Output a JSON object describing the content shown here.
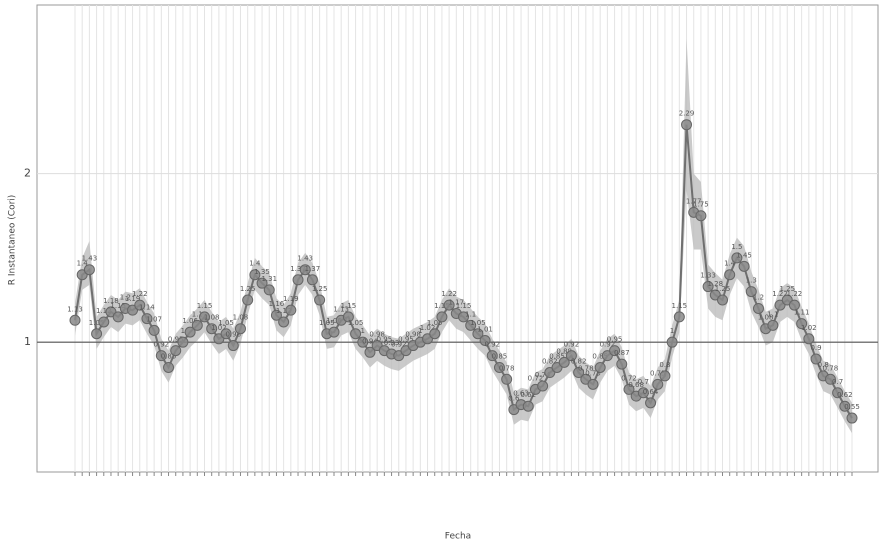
{
  "chart_data": {
    "type": "line",
    "y_label": "R Instantaneo (Cori)",
    "x_label": "Fecha",
    "values": [
      1.13,
      1.4,
      1.43,
      1.05,
      1.12,
      1.18,
      1.15,
      1.2,
      1.19,
      1.22,
      1.14,
      1.07,
      0.92,
      0.85,
      0.95,
      1.0,
      1.06,
      1.1,
      1.15,
      1.08,
      1.02,
      1.05,
      0.98,
      1.08,
      1.25,
      1.4,
      1.35,
      1.31,
      1.16,
      1.12,
      1.19,
      1.37,
      1.43,
      1.37,
      1.25,
      1.05,
      1.06,
      1.13,
      1.15,
      1.05,
      1.0,
      0.94,
      0.98,
      0.95,
      0.93,
      0.92,
      0.95,
      0.98,
      1.0,
      1.02,
      1.05,
      1.15,
      1.22,
      1.17,
      1.15,
      1.1,
      1.05,
      1.01,
      0.92,
      0.85,
      0.78,
      0.6,
      0.63,
      0.62,
      0.72,
      0.74,
      0.82,
      0.85,
      0.88,
      0.92,
      0.82,
      0.78,
      0.75,
      0.85,
      0.92,
      0.95,
      0.87,
      0.72,
      0.68,
      0.7,
      0.64,
      0.75,
      0.8,
      1.0,
      1.15,
      2.29,
      1.77,
      1.75,
      1.33,
      1.28,
      1.25,
      1.4,
      1.5,
      1.45,
      1.3,
      1.2,
      1.08,
      1.1,
      1.22,
      1.25,
      1.22,
      1.11,
      1.02,
      0.9,
      0.8,
      0.78,
      0.7,
      0.62,
      0.55
    ],
    "lower": [
      1.04,
      1.31,
      1.34,
      0.96,
      1.03,
      1.09,
      1.06,
      1.11,
      1.1,
      1.13,
      1.05,
      0.98,
      0.83,
      0.76,
      0.86,
      0.91,
      0.97,
      1.01,
      1.06,
      0.99,
      0.93,
      0.96,
      0.89,
      0.99,
      1.16,
      1.31,
      1.26,
      1.22,
      1.07,
      1.03,
      1.1,
      1.28,
      1.34,
      1.28,
      1.16,
      0.96,
      0.97,
      1.04,
      1.06,
      0.96,
      0.91,
      0.85,
      0.89,
      0.86,
      0.84,
      0.83,
      0.86,
      0.89,
      0.91,
      0.93,
      0.96,
      1.06,
      1.13,
      1.08,
      1.06,
      1.01,
      0.96,
      0.92,
      0.83,
      0.76,
      0.69,
      0.51,
      0.54,
      0.53,
      0.63,
      0.65,
      0.73,
      0.76,
      0.79,
      0.83,
      0.73,
      0.69,
      0.66,
      0.76,
      0.83,
      0.86,
      0.78,
      0.63,
      0.59,
      0.61,
      0.55,
      0.66,
      0.71,
      0.91,
      1.06,
      1.9,
      1.55,
      1.55,
      1.2,
      1.15,
      1.13,
      1.28,
      1.38,
      1.33,
      1.18,
      1.09,
      0.98,
      1.0,
      1.12,
      1.15,
      1.12,
      1.01,
      0.93,
      0.81,
      0.71,
      0.69,
      0.61,
      0.53,
      0.46
    ],
    "upper": [
      1.23,
      1.5,
      1.6,
      1.15,
      1.22,
      1.28,
      1.25,
      1.3,
      1.29,
      1.32,
      1.24,
      1.17,
      1.02,
      0.95,
      1.05,
      1.1,
      1.16,
      1.2,
      1.25,
      1.18,
      1.12,
      1.15,
      1.08,
      1.18,
      1.35,
      1.5,
      1.45,
      1.41,
      1.26,
      1.22,
      1.29,
      1.47,
      1.53,
      1.47,
      1.35,
      1.15,
      1.16,
      1.23,
      1.25,
      1.15,
      1.1,
      1.04,
      1.08,
      1.05,
      1.03,
      1.02,
      1.05,
      1.08,
      1.1,
      1.12,
      1.15,
      1.25,
      1.32,
      1.27,
      1.25,
      1.2,
      1.15,
      1.11,
      1.02,
      0.95,
      0.88,
      0.7,
      0.73,
      0.72,
      0.82,
      0.84,
      0.92,
      0.95,
      0.98,
      1.02,
      0.92,
      0.88,
      0.85,
      0.95,
      1.02,
      1.05,
      0.97,
      0.82,
      0.78,
      0.8,
      0.74,
      0.85,
      0.9,
      1.1,
      1.25,
      2.8,
      2.0,
      1.95,
      1.46,
      1.41,
      1.37,
      1.52,
      1.62,
      1.57,
      1.42,
      1.31,
      1.18,
      1.2,
      1.32,
      1.35,
      1.32,
      1.21,
      1.11,
      0.99,
      0.89,
      0.87,
      0.79,
      0.71,
      0.64
    ],
    "color": "#6f6f6f",
    "band_color": "#bdbdbd",
    "hline": 1,
    "ylim": [
      0.23,
      3.0
    ],
    "yticks": [
      1,
      2
    ],
    "grid": true
  }
}
